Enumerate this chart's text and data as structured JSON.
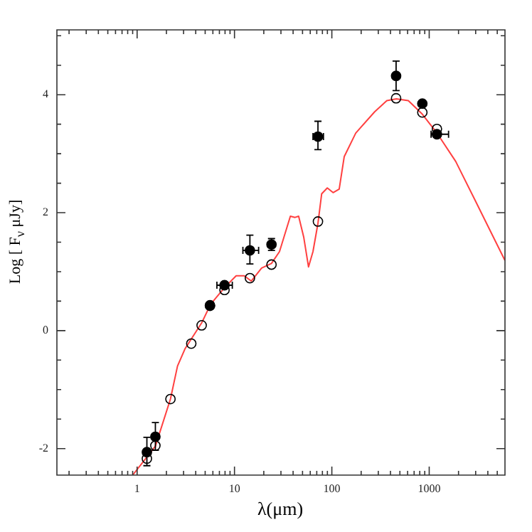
{
  "chart_data": {
    "type": "scatter",
    "xlabel": "λ(μm)",
    "ylabel": "Log [ F$_{ν}$ μJy]",
    "log": "x",
    "xlim": [
      0.15,
      6000
    ],
    "ylim": [
      -2.45,
      5.1
    ],
    "xticks": [
      {
        "value": 0.2,
        "label": null
      },
      {
        "value": 0.3,
        "label": null
      },
      {
        "value": 0.4,
        "label": null
      },
      {
        "value": 0.5,
        "label": null
      },
      {
        "value": 0.6,
        "label": null
      },
      {
        "value": 0.7,
        "label": null
      },
      {
        "value": 0.8,
        "label": null
      },
      {
        "value": 0.9,
        "label": null
      },
      1,
      {
        "value": 2,
        "label": null
      },
      {
        "value": 3,
        "label": null
      },
      {
        "value": 4,
        "label": null
      },
      {
        "value": 5,
        "label": null
      },
      {
        "value": 6,
        "label": null
      },
      {
        "value": 7,
        "label": null
      },
      {
        "value": 8,
        "label": null
      },
      {
        "value": 9,
        "label": null
      },
      10,
      {
        "value": 20,
        "label": null
      },
      {
        "value": 30,
        "label": null
      },
      {
        "value": 40,
        "label": null
      },
      {
        "value": 50,
        "label": null
      },
      {
        "value": 60,
        "label": null
      },
      {
        "value": 70,
        "label": null
      },
      {
        "value": 80,
        "label": null
      },
      {
        "value": 90,
        "label": null
      },
      100,
      {
        "value": 200,
        "label": null
      },
      {
        "value": 300,
        "label": null
      },
      {
        "value": 400,
        "label": null
      },
      {
        "value": 500,
        "label": null
      },
      {
        "value": 600,
        "label": null
      },
      {
        "value": 700,
        "label": null
      },
      {
        "value": 800,
        "label": null
      },
      {
        "value": 900,
        "label": null
      },
      1000,
      {
        "value": 2000,
        "label": null
      },
      {
        "value": 3000,
        "label": null
      },
      {
        "value": 4000,
        "label": null
      },
      {
        "value": 5000,
        "label": null
      }
    ],
    "yticks": [
      {
        "value": -2,
        "label": "-2"
      },
      {
        "value": -1.5,
        "label": null
      },
      {
        "value": -1,
        "label": null
      },
      {
        "value": -0.5,
        "label": null
      },
      0,
      {
        "value": 0.5,
        "label": null
      },
      {
        "value": 1,
        "label": null
      },
      {
        "value": 1.5,
        "label": null
      },
      2,
      {
        "value": 2.5,
        "label": null
      },
      {
        "value": 3,
        "label": null
      },
      {
        "value": 3.5,
        "label": null
      },
      4,
      {
        "value": 4.5,
        "label": null
      },
      {
        "value": 5,
        "label": null
      }
    ],
    "grid": false,
    "legend": false,
    "marker": "circle",
    "series": [
      {
        "type": "line",
        "marker": "none",
        "color": "#ff4040",
        "x": [
          0.9,
          1.54,
          2.2,
          2.6,
          3.1,
          4.6,
          5.7,
          7.9,
          10.4,
          12.6,
          14.9,
          19,
          24,
          29,
          37.5,
          41.9,
          45.6,
          51.5,
          57.6,
          64,
          72,
          78.6,
          89.8,
          103,
          119,
          134,
          176,
          275,
          367,
          460,
          610,
          850,
          1190,
          1870,
          2940,
          6000
        ],
        "values": [
          -2.45,
          -1.96,
          -1.16,
          -0.6,
          -0.31,
          0.13,
          0.45,
          0.73,
          0.93,
          0.93,
          0.84,
          1.06,
          1.14,
          1.34,
          1.94,
          1.92,
          1.94,
          1.58,
          1.08,
          1.34,
          1.82,
          2.32,
          2.42,
          2.34,
          2.4,
          2.95,
          3.35,
          3.71,
          3.9,
          3.93,
          3.9,
          3.67,
          3.36,
          2.87,
          2.22,
          1.19
        ]
      },
      {
        "color": "#000000",
        "x": [
          1.26,
          1.54,
          2.2,
          3.6,
          4.6,
          5.6,
          7.9,
          14.4,
          24,
          72,
          457,
          850,
          1200
        ],
        "values": [
          -2.17,
          -1.95,
          -1.16,
          -0.22,
          0.09,
          0.42,
          0.69,
          0.89,
          1.12,
          1.85,
          3.94,
          3.7,
          3.42
        ]
      },
      {
        "color": "#000000",
        "x": [
          1.26,
          1.54,
          5.6,
          7.9,
          14.4,
          24,
          72,
          457,
          850,
          1200
        ],
        "values": [
          -2.06,
          -1.8,
          0.43,
          0.77,
          1.36,
          1.46,
          3.29,
          4.32,
          3.85,
          3.33
        ],
        "errors": [
          [
            -2.29,
            -1.81
          ],
          [
            -2.03,
            -1.56
          ],
          null,
          null,
          [
            1.13,
            1.62
          ],
          [
            1.36,
            1.56
          ],
          [
            3.07,
            3.55
          ],
          [
            4.07,
            4.57
          ],
          null,
          null
        ],
        "xerrors": [
          null,
          null,
          null,
          [
            6.6,
            9.5
          ],
          [
            12.2,
            17.7
          ],
          null,
          [
            64,
            82
          ],
          null,
          null,
          [
            1045,
            1580
          ]
        ]
      }
    ]
  }
}
